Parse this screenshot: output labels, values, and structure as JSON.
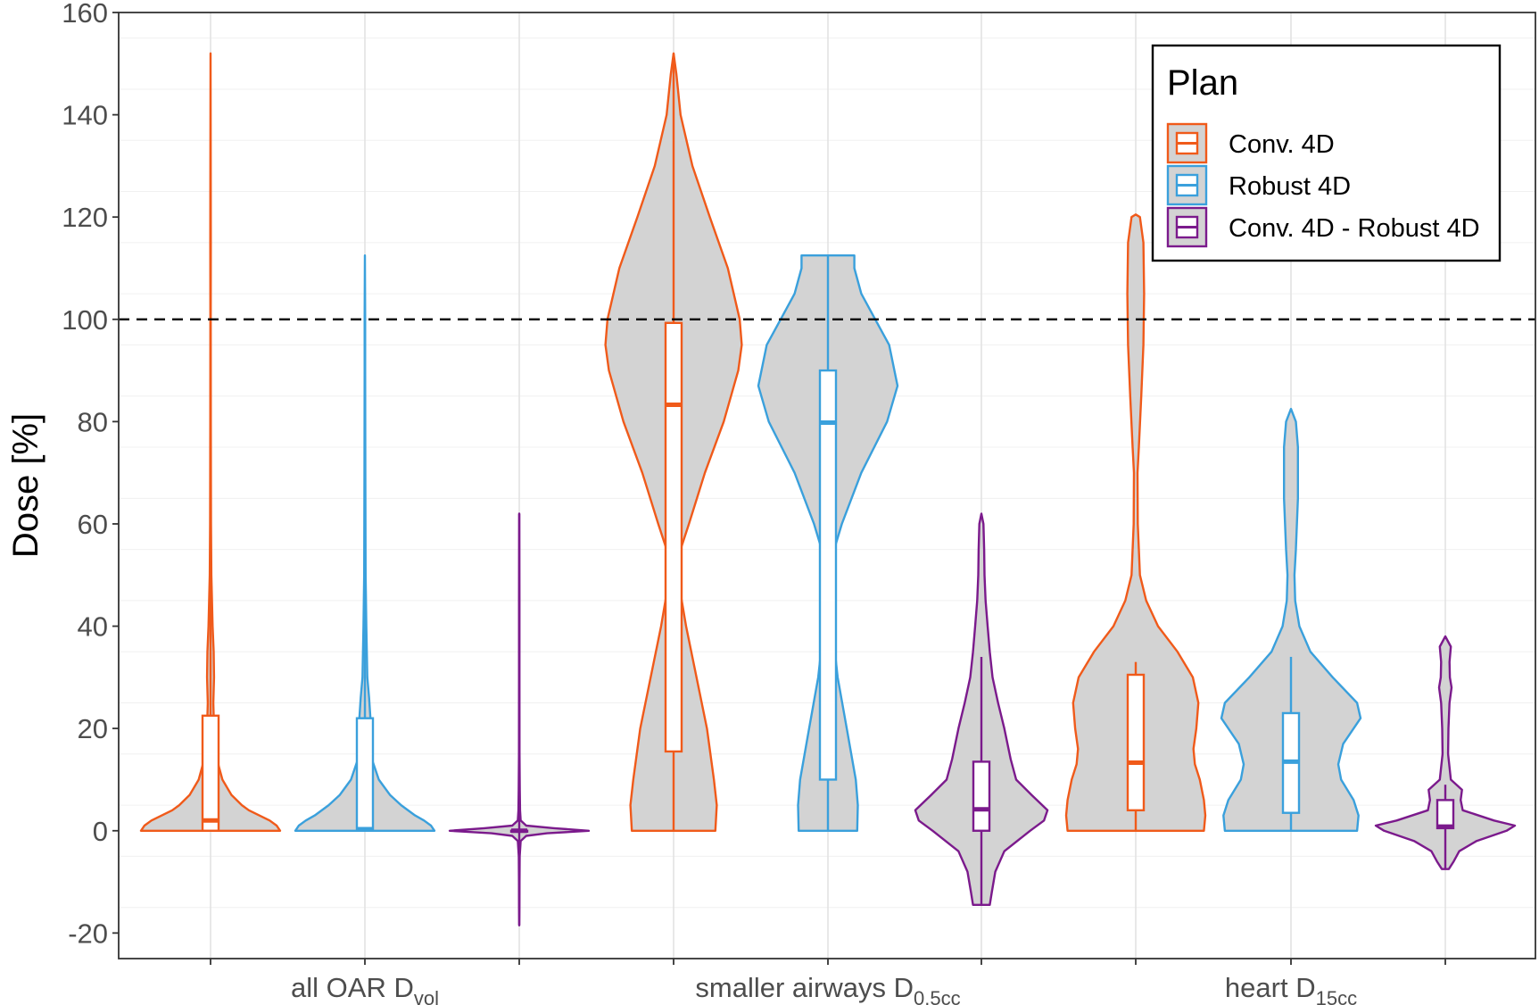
{
  "chart_data": {
    "type": "violin",
    "ylabel": "Dose [%]",
    "ylim": [
      -25,
      160
    ],
    "yticks": [
      -20,
      0,
      20,
      40,
      60,
      80,
      100,
      120,
      140,
      160
    ],
    "reference_line": {
      "y": 100,
      "style": "dashed"
    },
    "grid": true,
    "legend": {
      "title": "Plan",
      "position": "top-right",
      "entries": [
        {
          "label": "Conv. 4D",
          "color": "#f05a1a"
        },
        {
          "label": "Robust 4D",
          "color": "#3aa0dc"
        },
        {
          "label": "Conv. 4D - Robust 4D",
          "color": "#7b1a8c"
        }
      ]
    },
    "categories": [
      {
        "label": "all OAR D",
        "sub": "vol"
      },
      {
        "label": "smaller airways D",
        "sub": "0.5cc"
      },
      {
        "label": "heart D",
        "sub": "15cc"
      }
    ],
    "series": [
      {
        "name": "Conv. 4D",
        "color": "#f05a1a",
        "groups": [
          {
            "category": 0,
            "min": 0,
            "max": 152,
            "q1": 0,
            "median": 2,
            "q3": 22.5,
            "whisker_low": 0,
            "whisker_high": 56,
            "density": [
              [
                0,
                1.0
              ],
              [
                1,
                0.95
              ],
              [
                2,
                0.85
              ],
              [
                3,
                0.7
              ],
              [
                4,
                0.55
              ],
              [
                5,
                0.45
              ],
              [
                7,
                0.3
              ],
              [
                10,
                0.17
              ],
              [
                14,
                0.09
              ],
              [
                20,
                0.05
              ],
              [
                25,
                0.04
              ],
              [
                30,
                0.05
              ],
              [
                35,
                0.045
              ],
              [
                40,
                0.03
              ],
              [
                45,
                0.02
              ],
              [
                50,
                0.012
              ],
              [
                60,
                0.007
              ],
              [
                80,
                0.004
              ],
              [
                100,
                0.003
              ],
              [
                115,
                0.004
              ],
              [
                130,
                0.002
              ],
              [
                152,
                0.0
              ]
            ]
          },
          {
            "category": 1,
            "min": 0,
            "max": 152,
            "q1": 15.5,
            "median": 83.3,
            "q3": 99.3,
            "whisker_low": 0,
            "whisker_high": 152,
            "density": [
              [
                0,
                0.6
              ],
              [
                5,
                0.62
              ],
              [
                10,
                0.58
              ],
              [
                20,
                0.48
              ],
              [
                30,
                0.33
              ],
              [
                40,
                0.18
              ],
              [
                48,
                0.08
              ],
              [
                50,
                0.06
              ],
              [
                55,
                0.1
              ],
              [
                60,
                0.22
              ],
              [
                70,
                0.45
              ],
              [
                80,
                0.72
              ],
              [
                90,
                0.93
              ],
              [
                95,
                0.98
              ],
              [
                100,
                0.95
              ],
              [
                110,
                0.78
              ],
              [
                120,
                0.52
              ],
              [
                130,
                0.27
              ],
              [
                140,
                0.1
              ],
              [
                148,
                0.04
              ],
              [
                152,
                0.0
              ]
            ]
          },
          {
            "category": 2,
            "min": 0,
            "max": 120.5,
            "q1": 4,
            "median": 13.3,
            "q3": 30.5,
            "whisker_low": 0,
            "whisker_high": 33,
            "density": [
              [
                0,
                0.98
              ],
              [
                3,
                1.0
              ],
              [
                6,
                0.98
              ],
              [
                10,
                0.92
              ],
              [
                13,
                0.85
              ],
              [
                16,
                0.83
              ],
              [
                20,
                0.87
              ],
              [
                25,
                0.9
              ],
              [
                30,
                0.82
              ],
              [
                35,
                0.6
              ],
              [
                40,
                0.32
              ],
              [
                45,
                0.15
              ],
              [
                50,
                0.06
              ],
              [
                60,
                0.03
              ],
              [
                70,
                0.025
              ],
              [
                75,
                0.045
              ],
              [
                85,
                0.08
              ],
              [
                95,
                0.11
              ],
              [
                105,
                0.12
              ],
              [
                115,
                0.11
              ],
              [
                120,
                0.06
              ],
              [
                120.5,
                0.0
              ]
            ]
          }
        ]
      },
      {
        "name": "Robust 4D",
        "color": "#3aa0dc",
        "groups": [
          {
            "category": 0,
            "min": 0,
            "max": 112.5,
            "q1": 0,
            "median": 0.3,
            "q3": 22,
            "whisker_low": 0,
            "whisker_high": 54,
            "density": [
              [
                0,
                1.0
              ],
              [
                1,
                0.95
              ],
              [
                2,
                0.85
              ],
              [
                3,
                0.72
              ],
              [
                5,
                0.52
              ],
              [
                7,
                0.36
              ],
              [
                10,
                0.2
              ],
              [
                14,
                0.1
              ],
              [
                18,
                0.07
              ],
              [
                22,
                0.08
              ],
              [
                26,
                0.06
              ],
              [
                30,
                0.035
              ],
              [
                40,
                0.02
              ],
              [
                50,
                0.01
              ],
              [
                70,
                0.006
              ],
              [
                90,
                0.004
              ],
              [
                100,
                0.004
              ],
              [
                112.5,
                0.0
              ]
            ]
          },
          {
            "category": 1,
            "min": 0,
            "max": 112.5,
            "q1": 10,
            "median": 79.8,
            "q3": 90,
            "whisker_low": 0,
            "whisker_high": 112.5,
            "density": [
              [
                0,
                0.42
              ],
              [
                5,
                0.43
              ],
              [
                10,
                0.4
              ],
              [
                20,
                0.27
              ],
              [
                30,
                0.14
              ],
              [
                40,
                0.06
              ],
              [
                50,
                0.05
              ],
              [
                55,
                0.09
              ],
              [
                60,
                0.2
              ],
              [
                70,
                0.48
              ],
              [
                80,
                0.85
              ],
              [
                87,
                1.0
              ],
              [
                95,
                0.88
              ],
              [
                100,
                0.68
              ],
              [
                105,
                0.48
              ],
              [
                110,
                0.38
              ],
              [
                112.5,
                0.38
              ]
            ]
          },
          {
            "category": 2,
            "min": 0,
            "max": 82.5,
            "q1": 3.5,
            "median": 13.5,
            "q3": 23,
            "whisker_low": 0,
            "whisker_high": 34,
            "density": [
              [
                0,
                0.95
              ],
              [
                3,
                0.97
              ],
              [
                6,
                0.9
              ],
              [
                10,
                0.72
              ],
              [
                13,
                0.68
              ],
              [
                17,
                0.75
              ],
              [
                22,
                1.0
              ],
              [
                25,
                0.95
              ],
              [
                30,
                0.6
              ],
              [
                35,
                0.28
              ],
              [
                40,
                0.12
              ],
              [
                45,
                0.06
              ],
              [
                50,
                0.05
              ],
              [
                55,
                0.07
              ],
              [
                65,
                0.1
              ],
              [
                75,
                0.1
              ],
              [
                80,
                0.07
              ],
              [
                82.5,
                0.0
              ]
            ]
          }
        ]
      },
      {
        "name": "Conv. 4D - Robust 4D",
        "color": "#7b1a8c",
        "groups": [
          {
            "category": 0,
            "min": -18.5,
            "max": 62,
            "q1": 0,
            "median": 0,
            "q3": 0,
            "whisker_low": -18.5,
            "whisker_high": 62,
            "density": [
              [
                -18.5,
                0.0
              ],
              [
                -15,
                0.003
              ],
              [
                -10,
                0.004
              ],
              [
                -5,
                0.006
              ],
              [
                -2,
                0.02
              ],
              [
                -1,
                0.1
              ],
              [
                -0.5,
                0.4
              ],
              [
                0,
                1.0
              ],
              [
                0.5,
                0.5
              ],
              [
                1,
                0.1
              ],
              [
                2,
                0.02
              ],
              [
                4,
                0.012
              ],
              [
                8,
                0.008
              ],
              [
                15,
                0.004
              ],
              [
                30,
                0.003
              ],
              [
                45,
                0.003
              ],
              [
                62,
                0.0
              ]
            ]
          },
          {
            "category": 1,
            "min": -14.5,
            "max": 62,
            "q1": 0,
            "median": 4.2,
            "q3": 13.5,
            "whisker_low": -14.5,
            "whisker_high": 34,
            "density": [
              [
                -14.5,
                0.12
              ],
              [
                -12,
                0.15
              ],
              [
                -8,
                0.2
              ],
              [
                -4,
                0.33
              ],
              [
                0,
                0.7
              ],
              [
                2,
                0.9
              ],
              [
                4,
                0.95
              ],
              [
                7,
                0.72
              ],
              [
                10,
                0.5
              ],
              [
                14,
                0.42
              ],
              [
                20,
                0.33
              ],
              [
                25,
                0.24
              ],
              [
                30,
                0.16
              ],
              [
                35,
                0.12
              ],
              [
                40,
                0.09
              ],
              [
                45,
                0.06
              ],
              [
                50,
                0.045
              ],
              [
                55,
                0.04
              ],
              [
                60,
                0.03
              ],
              [
                62,
                0.0
              ]
            ]
          },
          {
            "category": 2,
            "min": -7.5,
            "max": 38,
            "q1": 0.5,
            "median": 0.8,
            "q3": 6,
            "whisker_low": -7.5,
            "whisker_high": 9,
            "density": [
              [
                -7.5,
                0.05
              ],
              [
                -6,
                0.12
              ],
              [
                -4,
                0.2
              ],
              [
                -2,
                0.45
              ],
              [
                0,
                0.88
              ],
              [
                1,
                1.0
              ],
              [
                2,
                0.7
              ],
              [
                4,
                0.25
              ],
              [
                6,
                0.22
              ],
              [
                8,
                0.24
              ],
              [
                10,
                0.08
              ],
              [
                15,
                0.04
              ],
              [
                20,
                0.045
              ],
              [
                25,
                0.06
              ],
              [
                28,
                0.09
              ],
              [
                30,
                0.065
              ],
              [
                33,
                0.06
              ],
              [
                36,
                0.08
              ],
              [
                38,
                0.0
              ]
            ]
          }
        ]
      }
    ]
  }
}
